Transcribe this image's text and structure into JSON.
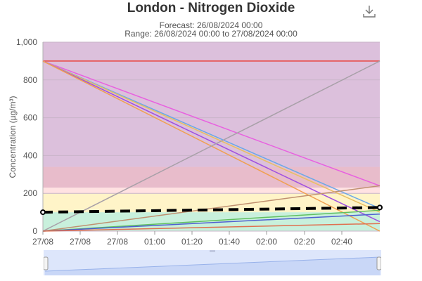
{
  "header": {
    "title": "London - Nitrogen Dioxide",
    "forecast_line": "Forecast: 26/08/2024 00:00",
    "range_line": "Range: 26/08/2024 00:00 to 27/08/2024 00:00",
    "download_icon": "download-icon"
  },
  "chart_data": {
    "type": "line",
    "title": "London - Nitrogen Dioxide",
    "ylabel": "Concentration (µg/m³)",
    "xlabel": "",
    "x_tick_labels": [
      "27/08",
      "27/08",
      "27/08",
      "01:00",
      "01:20",
      "01:40",
      "02:00",
      "02:20",
      "02:40"
    ],
    "y_tick_labels": [
      "0",
      "200",
      "400",
      "600",
      "800",
      "1,000"
    ],
    "ylim": [
      0,
      1000
    ],
    "x": [
      0,
      1
    ],
    "x_note_free": true,
    "bands": [
      {
        "from": 0,
        "to": 100,
        "color": "#c8f0dc"
      },
      {
        "from": 100,
        "to": 200,
        "color": "#fff4c8"
      },
      {
        "from": 200,
        "to": 230,
        "color": "#ffe2e2"
      },
      {
        "from": 230,
        "to": 340,
        "color": "#e8bccb"
      },
      {
        "from": 340,
        "to": 1000,
        "color": "#dcc0dc"
      }
    ],
    "series": [
      {
        "values": [
          900,
          900
        ],
        "color": "#e8423c",
        "width": 1.5
      },
      {
        "values": [
          900,
          240
        ],
        "color": "#e860e0",
        "width": 1.5
      },
      {
        "values": [
          900,
          120
        ],
        "color": "#6aa8e8",
        "width": 1.5
      },
      {
        "values": [
          900,
          100
        ],
        "color": "#e8c060",
        "width": 1.5
      },
      {
        "values": [
          900,
          50
        ],
        "color": "#a050e0",
        "width": 1.5
      },
      {
        "values": [
          900,
          0
        ],
        "color": "#f0a050",
        "width": 1.5
      },
      {
        "values": [
          0,
          900
        ],
        "color": "#a8a0a8",
        "width": 1.5
      },
      {
        "values": [
          0,
          240
        ],
        "color": "#c09070",
        "width": 1.5
      },
      {
        "values": [
          0,
          110
        ],
        "color": "#60c060",
        "width": 1.5
      },
      {
        "values": [
          0,
          90
        ],
        "color": "#5060d0",
        "width": 1.5
      },
      {
        "values": [
          0,
          40
        ],
        "color": "#e07050",
        "width": 1.5
      },
      {
        "values": [
          100,
          125
        ],
        "color": "#000000",
        "width": 4,
        "dashed": true,
        "markers": true
      }
    ],
    "grid": true,
    "legend": "none"
  },
  "navigator": {
    "handle_icon": "range-handle-icon"
  }
}
